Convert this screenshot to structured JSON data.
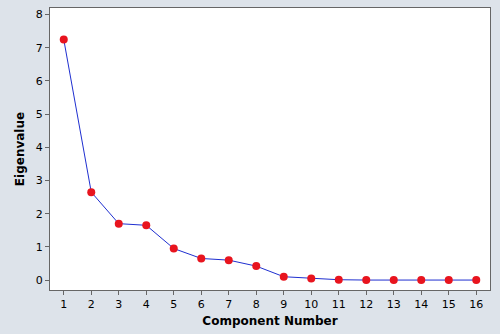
{
  "chart_data": {
    "type": "line",
    "x_label": "Component Number",
    "y_label": "Eigenvalue",
    "x": [
      1,
      2,
      3,
      4,
      5,
      6,
      7,
      8,
      9,
      10,
      11,
      12,
      13,
      14,
      15,
      16
    ],
    "values": [
      7.25,
      2.65,
      1.7,
      1.65,
      0.95,
      0.65,
      0.6,
      0.42,
      0.1,
      0.05,
      0.01,
      0,
      0,
      0,
      0,
      0
    ],
    "color": "#1f2fd0",
    "marker_color": "#e8141e",
    "marker": "circle",
    "xlim": [
      0.5,
      16.5
    ],
    "xticks": [
      1,
      2,
      3,
      4,
      5,
      6,
      7,
      8,
      9,
      10,
      11,
      12,
      13,
      14,
      15,
      16
    ],
    "ylim": [
      -0.3,
      8.2
    ],
    "yticks": [
      0,
      1,
      2,
      3,
      4,
      5,
      6,
      7,
      8
    ],
    "grid": false
  }
}
